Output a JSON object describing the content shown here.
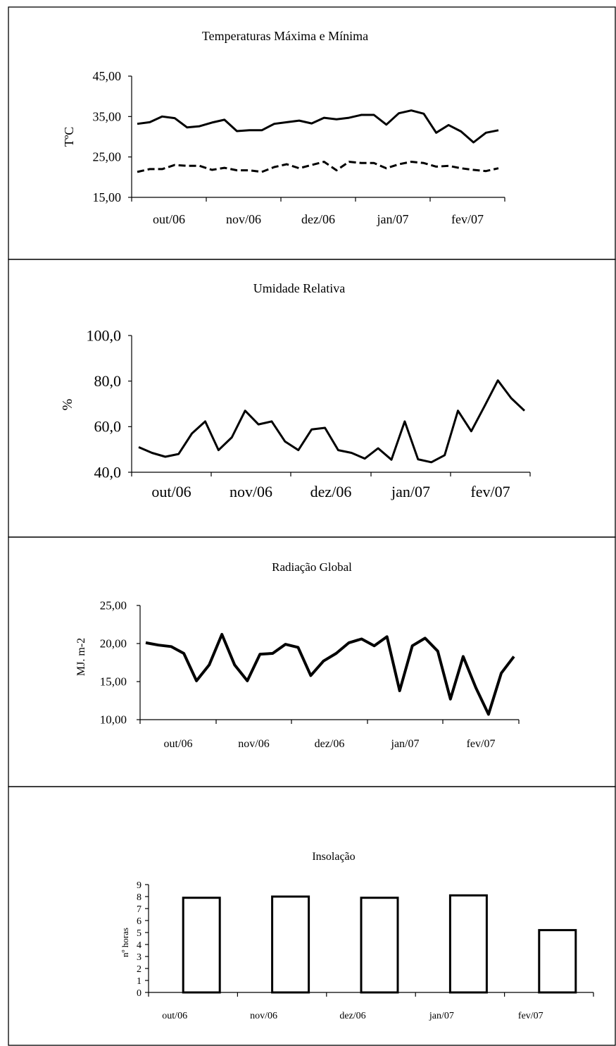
{
  "chart_data": [
    {
      "type": "line",
      "title": "Temperaturas  Máxima e Mínima",
      "ylabel": "TºC",
      "xlabel": "",
      "ylim": [
        15,
        45
      ],
      "yticks": [
        "45,00",
        "35,00",
        "25,00",
        "15,00"
      ],
      "x_labels": [
        "out/06",
        "nov/06",
        "dez/06",
        "jan/07",
        "fev/07"
      ],
      "series": [
        {
          "style": "solid",
          "values": [
            33.2,
            33.6,
            35.0,
            34.6,
            32.3,
            32.6,
            33.5,
            34.2,
            31.4,
            31.6,
            31.6,
            33.2,
            33.6,
            34.0,
            33.3,
            34.7,
            34.3,
            34.7,
            35.4,
            35.4,
            33.0,
            35.8,
            36.5,
            35.7,
            31.0,
            32.9,
            31.3,
            28.6,
            31.0,
            31.6
          ]
        },
        {
          "style": "dashed",
          "values": [
            21.3,
            22.0,
            22.0,
            23.0,
            22.8,
            22.8,
            21.8,
            22.3,
            21.7,
            21.7,
            21.3,
            22.5,
            23.2,
            22.2,
            23.0,
            23.8,
            21.7,
            23.8,
            23.5,
            23.5,
            22.2,
            23.2,
            23.8,
            23.5,
            22.6,
            22.8,
            22.2,
            21.8,
            21.5,
            22.2
          ]
        }
      ]
    },
    {
      "type": "line",
      "title": "Umidade Relativa",
      "ylabel": "%",
      "xlabel": "",
      "ylim": [
        40,
        100
      ],
      "yticks": [
        "100,0",
        "80,0",
        "60,0",
        "40,0"
      ],
      "x_labels": [
        "out/06",
        "nov/06",
        "dez/06",
        "jan/07",
        "fev/07"
      ],
      "series": [
        {
          "style": "solid",
          "values": [
            51.0,
            48.5,
            46.8,
            48.0,
            57.0,
            62.3,
            49.7,
            55.3,
            67.0,
            61.0,
            62.3,
            53.5,
            49.7,
            58.8,
            59.5,
            49.7,
            48.5,
            46.0,
            50.5,
            45.5,
            62.3,
            45.7,
            44.4,
            47.5,
            67.0,
            58.0,
            69.0,
            80.3,
            72.5,
            67.0
          ]
        }
      ]
    },
    {
      "type": "line",
      "title": "Radiação Global",
      "ylabel": "MJ. m-2",
      "xlabel": "",
      "ylim": [
        10,
        25
      ],
      "yticks": [
        "25,00",
        "20,00",
        "15,00",
        "10,00"
      ],
      "x_labels": [
        "out/06",
        "nov/06",
        "dez/06",
        "jan/07",
        "fev/07"
      ],
      "series": [
        {
          "style": "solid",
          "values": [
            20.1,
            19.8,
            19.6,
            18.7,
            15.1,
            17.2,
            21.2,
            17.2,
            15.1,
            18.6,
            18.7,
            19.9,
            19.5,
            15.8,
            17.7,
            18.7,
            20.1,
            20.6,
            19.7,
            20.9,
            13.8,
            19.7,
            20.7,
            19.0,
            12.7,
            18.3,
            14.2,
            10.7,
            16.1,
            18.3
          ]
        }
      ]
    },
    {
      "type": "bar",
      "title": "Insolação",
      "ylabel": "nº horas",
      "xlabel": "",
      "ylim": [
        0,
        9
      ],
      "yticks": [
        "9",
        "8",
        "7",
        "6",
        "5",
        "4",
        "3",
        "2",
        "1",
        "0"
      ],
      "categories": [
        "out/06",
        "nov/06",
        "dez/06",
        "jan/07",
        "fev/07"
      ],
      "values": [
        7.9,
        8.0,
        7.9,
        8.1,
        5.2
      ]
    }
  ]
}
